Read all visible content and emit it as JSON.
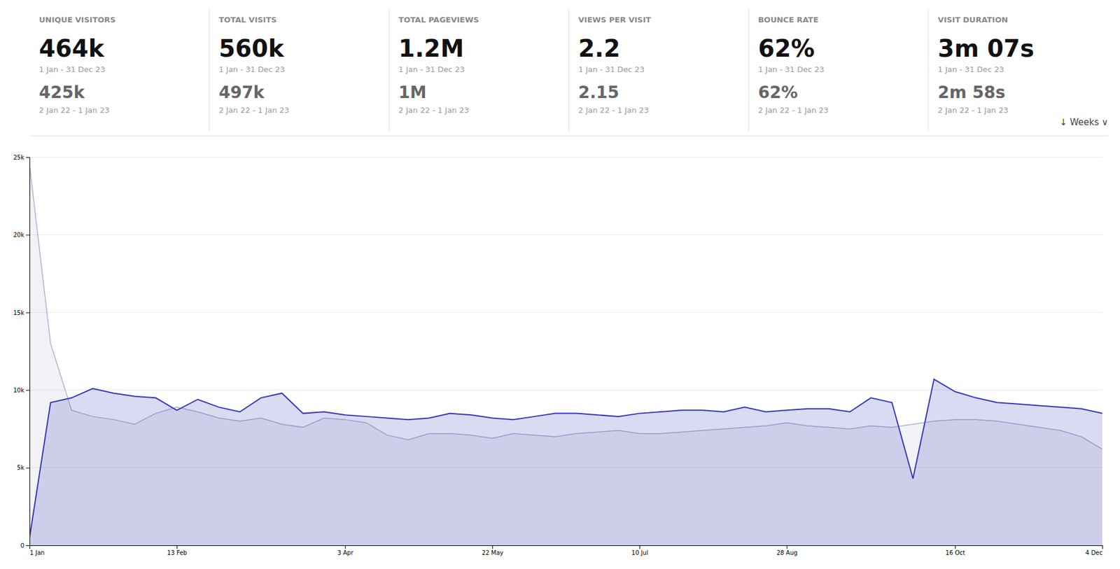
{
  "chart_data": {
    "type": "area",
    "metrics": [
      {
        "label": "UNIQUE VISITORS",
        "value_2023": "464k",
        "date_2023": "1 Jan - 31 Dec 23",
        "value_2022": "425k",
        "date_2022": "2 Jan 22 - 1 Jan 23"
      },
      {
        "label": "TOTAL VISITS",
        "value_2023": "560k",
        "date_2023": "1 Jan - 31 Dec 23",
        "value_2022": "497k",
        "date_2022": "2 Jan 22 - 1 Jan 23"
      },
      {
        "label": "TOTAL PAGEVIEWS",
        "value_2023": "1.2M",
        "date_2023": "1 Jan - 31 Dec 23",
        "value_2022": "1M",
        "date_2022": "2 Jan 22 - 1 Jan 23"
      },
      {
        "label": "VIEWS PER VISIT",
        "value_2023": "2.2",
        "date_2023": "1 Jan - 31 Dec 23",
        "value_2022": "2.15",
        "date_2022": "2 Jan 22 - 1 Jan 23"
      },
      {
        "label": "BOUNCE RATE",
        "value_2023": "62%",
        "date_2023": "1 Jan - 31 Dec 23",
        "value_2022": "62%",
        "date_2022": "2 Jan 22 - 1 Jan 23"
      },
      {
        "label": "VISIT DURATION",
        "value_2023": "3m 07s",
        "date_2023": "1 Jan - 31 Dec 23",
        "value_2022": "2m 58s",
        "date_2022": "2 Jan 22 - 1 Jan 23"
      }
    ],
    "annotation": "↓  Weeks  ∨",
    "categories": [
      "1 Jan",
      null,
      null,
      null,
      null,
      null,
      null,
      "13 Feb",
      null,
      null,
      null,
      null,
      null,
      null,
      null,
      "3 Apr",
      null,
      null,
      null,
      null,
      null,
      null,
      "22 May",
      null,
      null,
      null,
      null,
      null,
      null,
      "10 Jul",
      null,
      null,
      null,
      null,
      null,
      null,
      "28 Aug",
      null,
      null,
      null,
      null,
      null,
      null,
      null,
      "16 Oct",
      null,
      null,
      null,
      null,
      null,
      null,
      "4 Dec"
    ],
    "series": [
      {
        "color": "#b0b0cc",
        "values": [
          24500,
          13000,
          8700,
          8300,
          8100,
          7800,
          8500,
          8900,
          8600,
          8200,
          8000,
          8200,
          7800,
          7600,
          8200,
          8100,
          7900,
          7100,
          6800,
          7200,
          7200,
          7100,
          6900,
          7200,
          7100,
          7000,
          7200,
          7300,
          7400,
          7200,
          7200,
          7300,
          7400,
          7500,
          7600,
          7700,
          7900,
          7700,
          7600,
          7500,
          7700,
          7600,
          7800,
          8000,
          8100,
          8100,
          8000,
          7800,
          7600,
          7400,
          7000,
          6200
        ]
      },
      {
        "color": "#3333bb",
        "values": [
          500,
          9200,
          9500,
          10100,
          9800,
          9600,
          9500,
          8700,
          9400,
          8900,
          8600,
          9500,
          9800,
          8500,
          8600,
          8400,
          8300,
          8200,
          8100,
          8200,
          8500,
          8400,
          8200,
          8100,
          8300,
          8500,
          8500,
          8400,
          8300,
          8500,
          8600,
          8700,
          8700,
          8600,
          8900,
          8600,
          8700,
          8800,
          8800,
          8600,
          9500,
          9200,
          4300,
          10700,
          9900,
          9500,
          9200,
          9100,
          9000,
          8900,
          8800,
          8500
        ]
      }
    ],
    "ylim": [
      0,
      25000
    ],
    "yticks": [
      0,
      {
        "value": 5000,
        "label": "5k"
      },
      {
        "value": 10000,
        "label": "10k"
      },
      {
        "value": 15000,
        "label": "15k"
      },
      {
        "value": 20000,
        "label": "20k"
      },
      {
        "value": 25000,
        "label": "25k"
      }
    ],
    "grid": true
  }
}
